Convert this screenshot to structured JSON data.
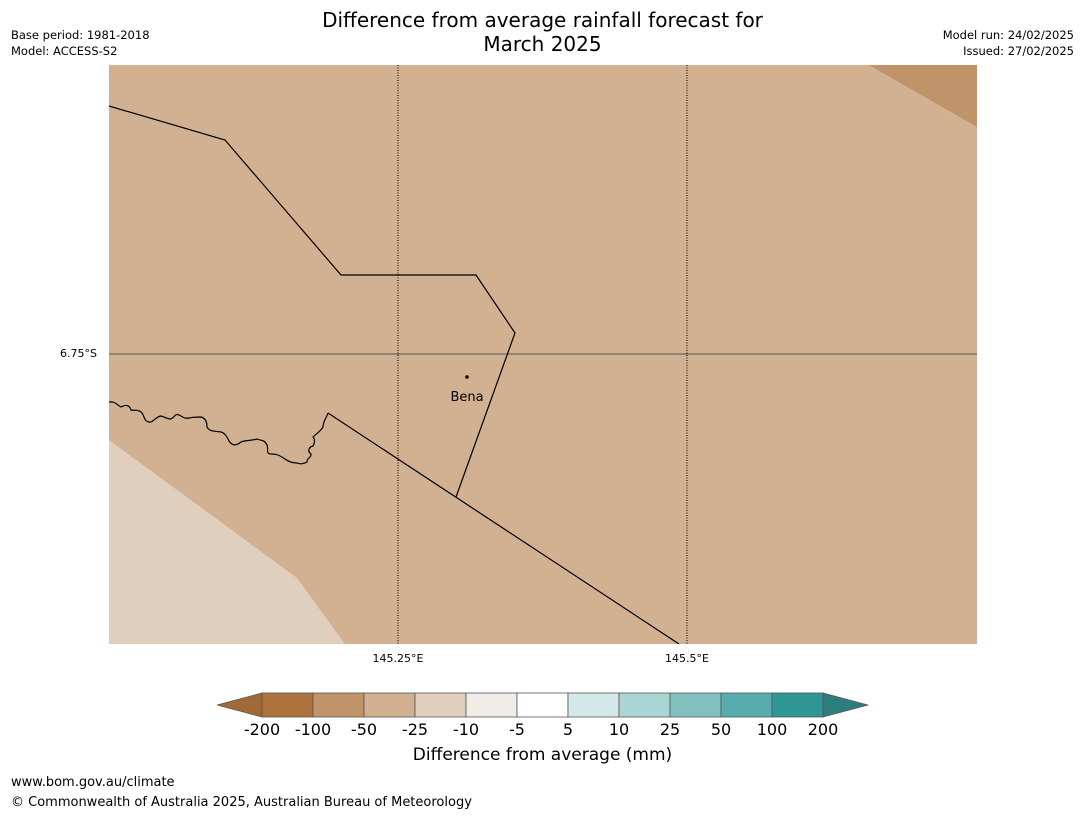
{
  "title_line1": "Difference from average rainfall forecast for",
  "title_line2": "March 2025",
  "meta": {
    "base_period": "Base period: 1981-2018",
    "model": "Model: ACCESS-S2",
    "model_run": "Model run: 24/02/2025",
    "issued": "Issued: 27/02/2025"
  },
  "map": {
    "place_name": "Bena",
    "lat_label": "6.75°S",
    "lon_labels": [
      "145.25°E",
      "145.5°E"
    ],
    "colors": {
      "class_minus25_to_minus50": "#d1b192",
      "class_minus50_to_minus100": "#c09468",
      "class_minus10_to_minus25": "#e1cfbd"
    }
  },
  "legend": {
    "label": "Difference from average (mm)",
    "ticks": [
      "-200",
      "-100",
      "-50",
      "-25",
      "-10",
      "-5",
      "5",
      "10",
      "25",
      "50",
      "100",
      "200"
    ],
    "colors": [
      "#a06a35",
      "#ae733d",
      "#c09468",
      "#d1b192",
      "#e1cfbd",
      "#f0ece8",
      "#ffffff",
      "#d5e8e9",
      "#abd4d5",
      "#82c0bf",
      "#59acad",
      "#2f9897",
      "#2d7d7c"
    ]
  },
  "footer": {
    "url": "www.bom.gov.au/climate",
    "copyright": "© Commonwealth of Australia 2025, Australian Bureau of Meteorology"
  }
}
